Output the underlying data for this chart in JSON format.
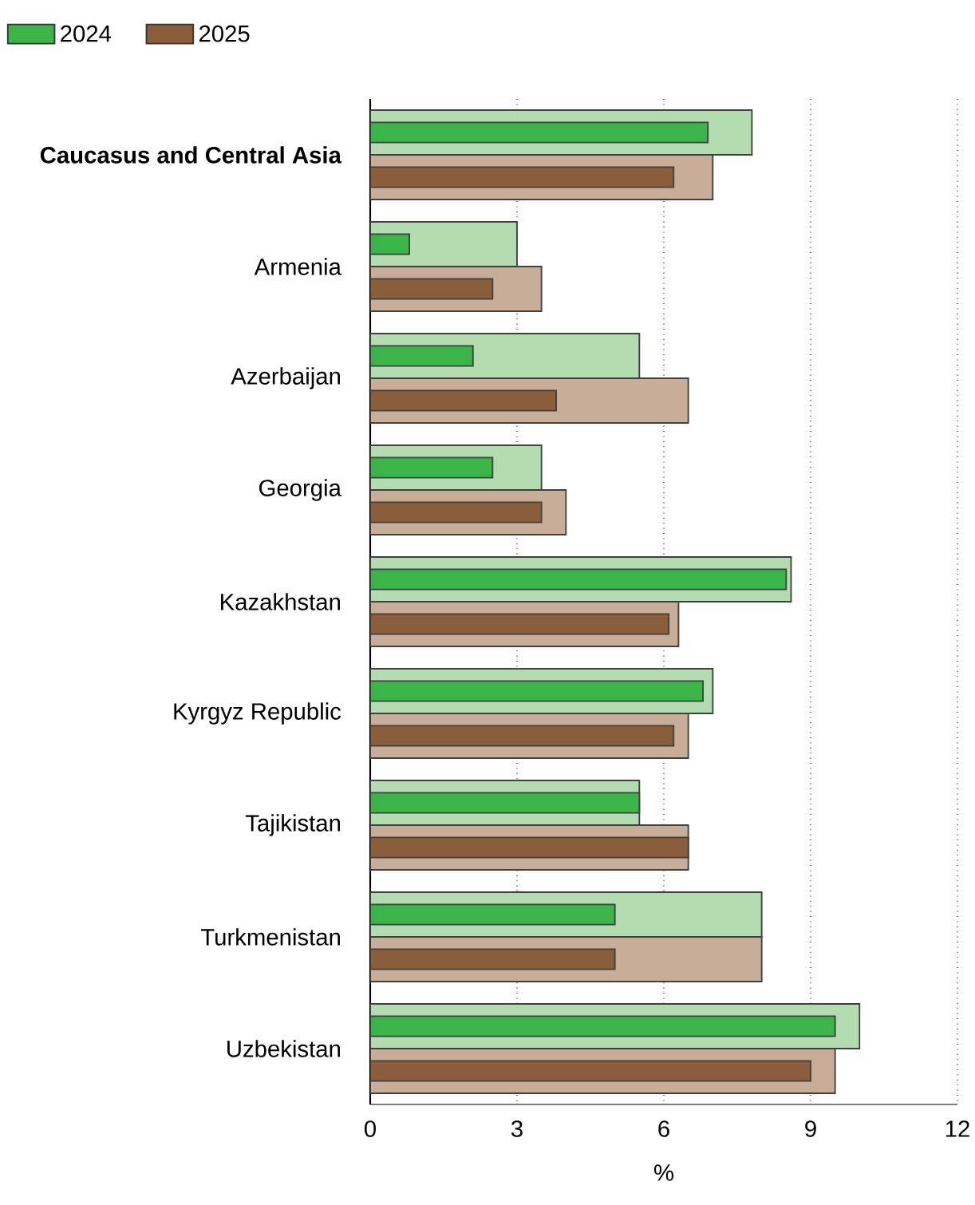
{
  "chart_data": {
    "type": "bar",
    "orientation": "horizontal",
    "xlabel": "%",
    "categories": [
      "Caucasus and Central Asia",
      "Armenia",
      "Azerbaijan",
      "Georgia",
      "Kazakhstan",
      "Kyrgyz Republic",
      "Tajikistan",
      "Turkmenistan",
      "Uzbekistan"
    ],
    "series": [
      {
        "color": "#b3dcb0",
        "values": [
          7.8,
          3.0,
          5.5,
          3.5,
          8.6,
          7.0,
          5.5,
          8.0,
          10.0
        ]
      },
      {
        "name": "2024",
        "color": "#3bb54a",
        "values": [
          6.9,
          0.8,
          2.1,
          2.5,
          8.5,
          6.8,
          5.5,
          5.0,
          9.5
        ]
      },
      {
        "color": "#c8ae98",
        "values": [
          7.0,
          3.5,
          6.5,
          4.0,
          6.3,
          6.5,
          6.5,
          8.0,
          9.5
        ]
      },
      {
        "name": "2025",
        "color": "#8b5e3b",
        "values": [
          6.2,
          2.5,
          3.8,
          3.5,
          6.1,
          6.2,
          6.5,
          5.0,
          9.0
        ]
      }
    ],
    "xlim": [
      0,
      12
    ],
    "xticks": [
      0,
      3,
      6,
      9,
      12
    ],
    "grid": "x",
    "legend": "top left"
  }
}
